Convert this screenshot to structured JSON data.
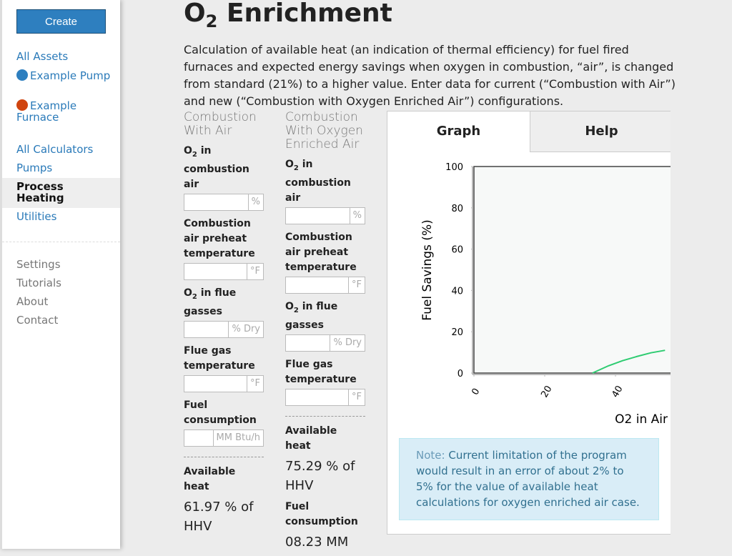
{
  "sidebar": {
    "create": "Create",
    "assets": [
      "All Assets",
      "Example Pump",
      "Example Furnace"
    ],
    "calculators": [
      "All Calculators",
      "Pumps",
      "Process Heating",
      "Utilities"
    ],
    "misc": [
      "Settings",
      "Tutorials",
      "About",
      "Contact"
    ]
  },
  "header": {
    "title_pre": "O",
    "title_sub": "2",
    "title_post": " Enrichment",
    "description": "Calculation of available heat (an indication of thermal efficiency) for fuel fired furnaces and expected energy savings when oxygen in combustion, “air”, is changed from standard (21%) to a higher value. Enter data for current (“Combustion with Air”) and new (“Combustion with Oxygen Enriched Air”) configurations."
  },
  "columns": [
    {
      "heading": "Combustion With Air",
      "fields": [
        {
          "label": "O",
          "sub": "2",
          "rest": " in combustion air",
          "unit": "%"
        },
        {
          "label": "Combustion air preheat temperature",
          "unit": "°F"
        },
        {
          "label": "O",
          "sub": "2",
          "rest": " in flue gasses",
          "unit": "% Dry"
        },
        {
          "label": "Flue gas temperature",
          "unit": "°F"
        },
        {
          "label": "Fuel consumption",
          "unit": "MM Btu/h"
        }
      ],
      "results": [
        {
          "label": "Available heat",
          "value": "61.97 % of HHV"
        }
      ]
    },
    {
      "heading": "Combustion With Oxygen Enriched Air",
      "fields": [
        {
          "label": "O",
          "sub": "2",
          "rest": " in combustion air",
          "unit": "%"
        },
        {
          "label": "Combustion air preheat temperature",
          "unit": "°F"
        },
        {
          "label": "O",
          "sub": "2",
          "rest": " in flue gasses",
          "unit": "% Dry"
        },
        {
          "label": "Flue gas temperature",
          "unit": "°F"
        }
      ],
      "results": [
        {
          "label": "Available heat",
          "value": "75.29 % of HHV"
        },
        {
          "label": "Fuel consumption",
          "value": "08.23 MM"
        }
      ]
    }
  ],
  "tabs": [
    "Graph",
    "Help"
  ],
  "chart_data": {
    "type": "line",
    "y_label": "Fuel Savings (%)",
    "x_label": "O2 in Air",
    "ylim": [
      0,
      100
    ],
    "yticks": [
      0,
      20,
      40,
      60,
      80,
      100
    ],
    "xlim": [
      0,
      100
    ],
    "xticks": [
      0,
      20,
      40
    ],
    "x": [
      33.5,
      38,
      42,
      46,
      50,
      54
    ],
    "series": [
      {
        "color": "#2ecc71",
        "values": [
          0,
          3.5,
          6,
          8,
          9.8,
          11
        ]
      }
    ]
  },
  "note": {
    "label": "Note:",
    "text": "Current limitation of the program would result in an error of about 2% to 5% for the value of available heat calculations for oxygen enriched air case."
  }
}
